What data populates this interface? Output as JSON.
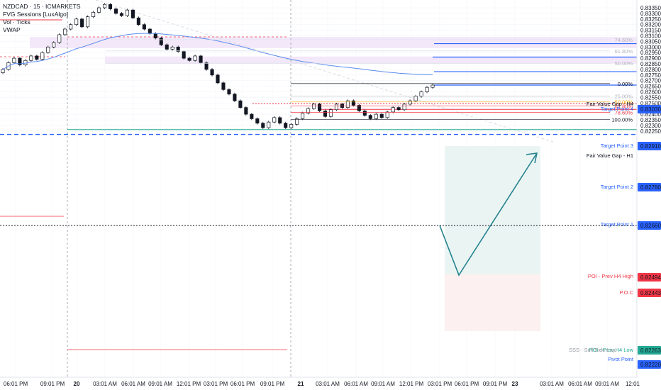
{
  "legend": {
    "symbol": "NZDCAD · 15 · ICMARKETS",
    "indicators": [
      "FVG Sessions [LuxAlgo]",
      "Vol · Ticks",
      "VWAP"
    ]
  },
  "chart_data": {
    "type": "candlestick",
    "symbol": "NZDCAD",
    "interval": "15",
    "exchange": "ICMARKETS",
    "ylim": [
      0.822,
      0.835
    ],
    "y_ticks": [
      "0.83350",
      "0.83300",
      "0.83250",
      "0.83200",
      "0.83150",
      "0.83100",
      "0.83050",
      "0.83000",
      "0.82950",
      "0.82900",
      "0.82850",
      "0.82800",
      "0.82750",
      "0.82700",
      "0.82650",
      "0.82600",
      "0.82550",
      "0.82500",
      "0.82450",
      "0.82400",
      "0.82350",
      "0.82300",
      "0.82250"
    ],
    "x_ticks": [
      "06:01 PM",
      "09:01 PM",
      "20",
      "03:01 AM",
      "06:01 AM",
      "09:01 AM",
      "12:01 PM",
      "03:01 PM",
      "06:01 PM",
      "09:01 PM",
      "21",
      "03:01 AM",
      "06:01 AM",
      "09:01 AM",
      "12:01 PM",
      "03:01 PM",
      "06:01 PM",
      "09:01 PM",
      "23",
      "03:01 AM",
      "06:01 AM",
      "09:01 AM",
      "12:01"
    ],
    "price_tags": [
      {
        "label": "0.83030",
        "color": "#2962ff"
      },
      {
        "label": "0.82910",
        "color": "#2962ff"
      },
      {
        "label": "0.82780",
        "color": "#2962ff"
      },
      {
        "label": "0.82660",
        "color": "#2962ff"
      },
      {
        "label": "0.82494",
        "color": "#f23645"
      },
      {
        "label": "0.82443",
        "color": "#f23645"
      },
      {
        "label": "0.82263",
        "color": "#22ab94"
      },
      {
        "label": "0.82220",
        "color": "#2962ff"
      }
    ],
    "fib_levels": [
      {
        "label": "74.60%",
        "price": 0.83065
      },
      {
        "label": "61.80%",
        "price": 0.82965
      },
      {
        "label": "50.00%",
        "price": 0.82855
      },
      {
        "label": "0.00%",
        "price": 0.82674
      },
      {
        "label": "25.00%",
        "price": 0.82563
      },
      {
        "label": "50.00%",
        "price": 0.8251
      },
      {
        "label": "61.80%",
        "price": 0.82475
      },
      {
        "label": "78.60%",
        "price": 0.82417
      },
      {
        "label": "100.00%",
        "price": 0.82353
      }
    ],
    "annotations": {
      "target_4": "Target Point 4",
      "fvg_h4": "Fair Value Gap - H4",
      "target_3": "Target Point 3",
      "fvg_h1": "Fair Value Gap - H1",
      "target_2": "Target Point 2",
      "target_1": "Target Point 1",
      "poi_high": "POI - Prev H4 High",
      "poc": "P.O.C",
      "poi_low": "POI - Prev H4 Low",
      "ssl": "SSS - Sell Side Liqu",
      "pivot": "Pivot Point"
    },
    "target_prices": {
      "t4": 0.8303,
      "t3": 0.8291,
      "t2": 0.8278,
      "t1": 0.8266,
      "poi_high": 0.82494,
      "poc": 0.82443,
      "poi_low": 0.82263,
      "pivot": 0.8222
    },
    "fvg_zones": [
      {
        "name": "Fair Value Gap - H4",
        "low": 0.8299,
        "high": 0.8309
      },
      {
        "name": "Fair Value Gap - H1",
        "low": 0.8285,
        "high": 0.82915
      }
    ],
    "close_series": [
      0.828,
      0.8286,
      0.829,
      0.8284,
      0.8288,
      0.8292,
      0.8289,
      0.8295,
      0.83,
      0.8304,
      0.8311,
      0.8316,
      0.832,
      0.8325,
      0.8318,
      0.8327,
      0.8331,
      0.8335,
      0.8338,
      0.8334,
      0.833,
      0.8328,
      0.8333,
      0.8326,
      0.832,
      0.8316,
      0.8312,
      0.8308,
      0.8302,
      0.8298,
      0.83,
      0.8296,
      0.829,
      0.8288,
      0.8292,
      0.8286,
      0.828,
      0.8275,
      0.8268,
      0.8262,
      0.8258,
      0.8252,
      0.8246,
      0.824,
      0.8236,
      0.8232,
      0.8228,
      0.8233,
      0.8237,
      0.8232,
      0.8228,
      0.8231,
      0.8236,
      0.8241,
      0.8245,
      0.8249,
      0.8243,
      0.8238,
      0.8244,
      0.8249,
      0.8246,
      0.8252,
      0.8248,
      0.8243,
      0.8239,
      0.8236,
      0.824,
      0.8237,
      0.8242,
      0.8246,
      0.8244,
      0.8249,
      0.8252,
      0.8256,
      0.826,
      0.8264,
      0.8266
    ]
  }
}
